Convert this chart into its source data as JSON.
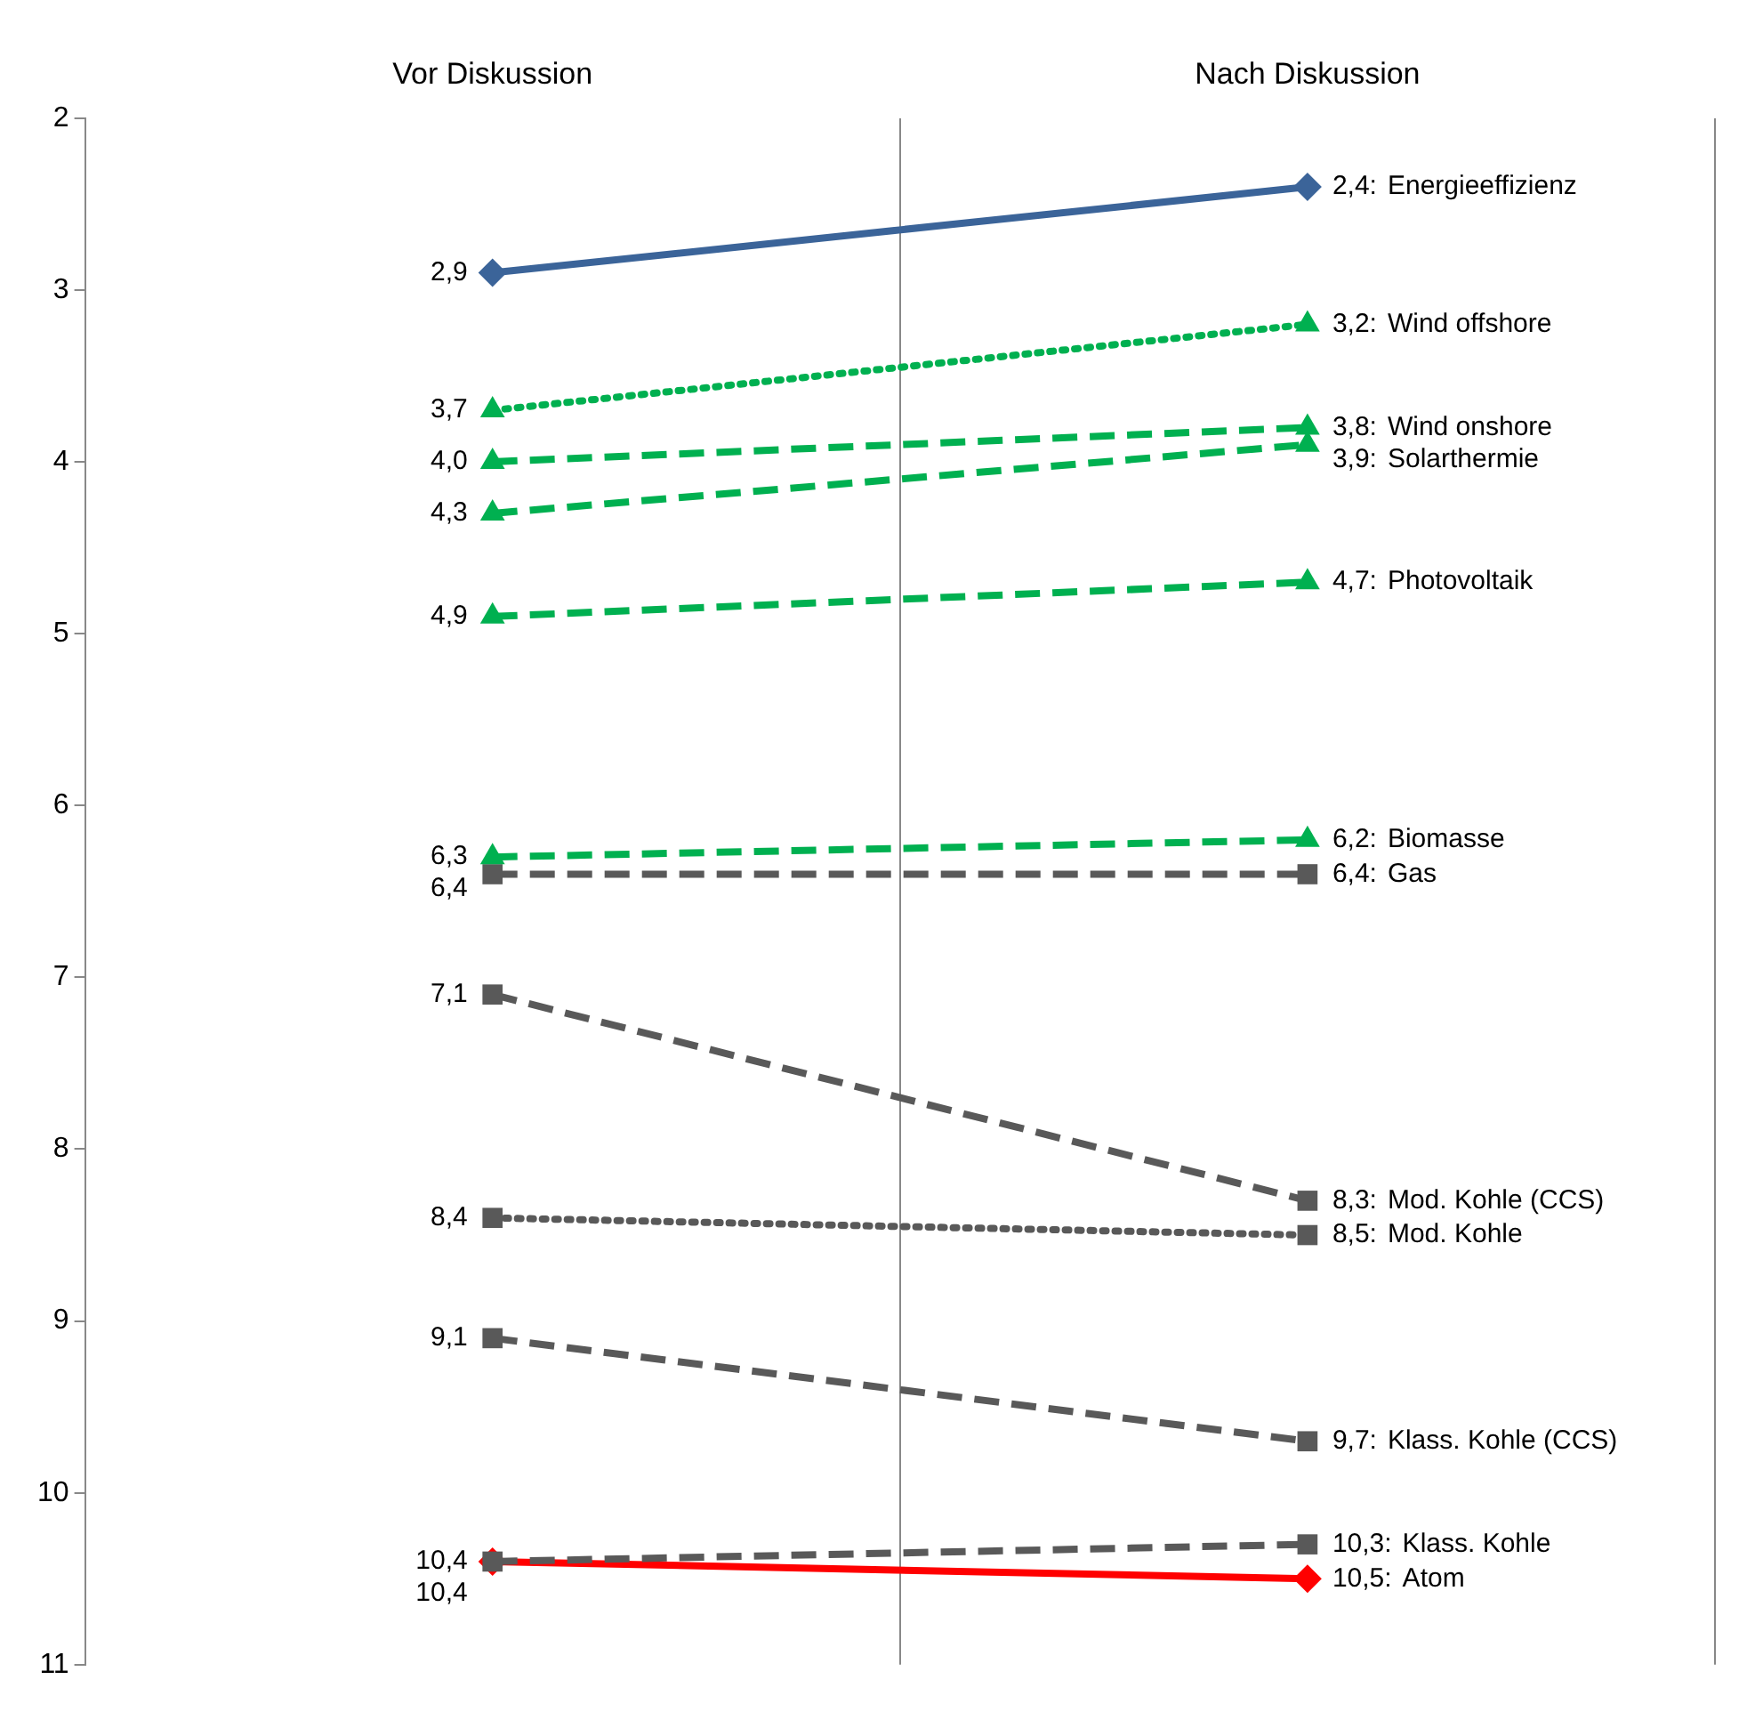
{
  "chart_data": {
    "type": "line",
    "categories": [
      "Vor Diskussion",
      "Nach Diskussion"
    ],
    "ylim": [
      11,
      2
    ],
    "yticks": [
      2,
      3,
      4,
      5,
      6,
      7,
      8,
      9,
      10,
      11
    ],
    "grid": "x",
    "legend": false,
    "series": [
      {
        "name": "Energieeffizienz",
        "color": "#3b6499",
        "values": [
          2.9,
          2.4
        ],
        "value_labels": [
          "2,9",
          "2,4:"
        ],
        "marker": "diamond",
        "line_style": "solid"
      },
      {
        "name": "Wind offshore",
        "color": "#00b050",
        "values": [
          3.7,
          3.2
        ],
        "value_labels": [
          "3,7",
          "3,2:"
        ],
        "marker": "triangle",
        "line_style": "dotted"
      },
      {
        "name": "Wind onshore",
        "color": "#00b050",
        "values": [
          4.0,
          3.8
        ],
        "value_labels": [
          "4,0",
          "3,8:"
        ],
        "marker": "triangle",
        "line_style": "dashed"
      },
      {
        "name": "Solarthermie",
        "color": "#00b050",
        "values": [
          4.3,
          3.9
        ],
        "value_labels": [
          "4,3",
          "3,9:"
        ],
        "marker": "triangle",
        "line_style": "dashed"
      },
      {
        "name": "Photovoltaik",
        "color": "#00b050",
        "values": [
          4.9,
          4.7
        ],
        "value_labels": [
          "4,9",
          "4,7:"
        ],
        "marker": "triangle",
        "line_style": "dashed"
      },
      {
        "name": "Biomasse",
        "color": "#00b050",
        "values": [
          6.3,
          6.2
        ],
        "value_labels": [
          "6,3",
          "6,2:"
        ],
        "marker": "triangle",
        "line_style": "dashed"
      },
      {
        "name": "Gas",
        "color": "#595959",
        "values": [
          6.4,
          6.4
        ],
        "value_labels": [
          "6,4",
          "6,4:"
        ],
        "marker": "square",
        "line_style": "dashed"
      },
      {
        "name": "Mod. Kohle (CCS)",
        "color": "#595959",
        "values": [
          7.1,
          8.3
        ],
        "value_labels": [
          "7,1",
          "8,3:"
        ],
        "marker": "square",
        "line_style": "dashed"
      },
      {
        "name": "Mod. Kohle",
        "color": "#595959",
        "values": [
          8.4,
          8.5
        ],
        "value_labels": [
          "8,4",
          "8,5:"
        ],
        "marker": "square",
        "line_style": "dotted"
      },
      {
        "name": "Klass. Kohle (CCS)",
        "color": "#595959",
        "values": [
          9.1,
          9.7
        ],
        "value_labels": [
          "9,1",
          "9,7:"
        ],
        "marker": "square",
        "line_style": "dashed"
      },
      {
        "name": "Klass. Kohle",
        "color": "#595959",
        "values": [
          10.4,
          10.3
        ],
        "value_labels": [
          "10,4",
          "10,3:"
        ],
        "marker": "square",
        "line_style": "dashed"
      },
      {
        "name": "Atom",
        "color": "#ff0000",
        "values": [
          10.4,
          10.5
        ],
        "value_labels": [
          "10,4",
          "10,5:"
        ],
        "marker": "diamond",
        "line_style": "solid"
      }
    ]
  }
}
